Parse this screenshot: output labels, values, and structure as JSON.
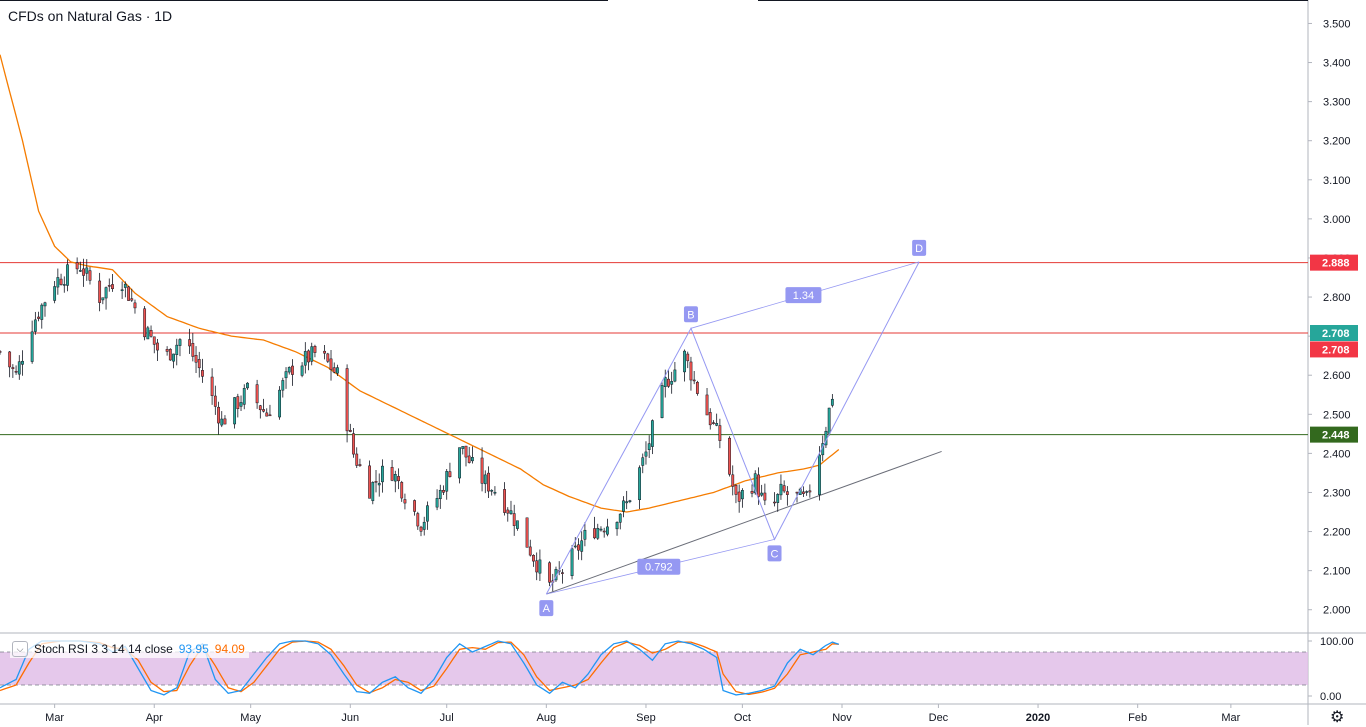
{
  "title": "CFDs on Natural Gas · 1D",
  "indicator": {
    "name": "Stoch RSI 3 3 14 14 close",
    "k_value": "93.95",
    "d_value": "94.09"
  },
  "icons": {
    "collapse": "chevron-down-icon",
    "settings": "gear-icon"
  },
  "colors": {
    "up": "#26a69a",
    "down": "#ef5350",
    "ma": "#f57c00",
    "harmonic": "#9598f2",
    "red_line": "#e53935",
    "green_line": "#33691e",
    "k": "#2196f3",
    "d": "#ff6d00",
    "band": "#e1bee7"
  },
  "chart_data": {
    "type": "candlestick",
    "symbol": "CFDs on Natural Gas",
    "interval": "1D",
    "x_labels": [
      "Mar",
      "Apr",
      "May",
      "Jun",
      "Jul",
      "Aug",
      "Sep",
      "Oct",
      "Nov",
      "Dec",
      "2020",
      "Feb",
      "Mar"
    ],
    "x_label_days": [
      0,
      31,
      61,
      92,
      122,
      153,
      184,
      214,
      245,
      275,
      306,
      337,
      366
    ],
    "x_range_days": [
      -17,
      390
    ],
    "y_ticks": [
      "3.500",
      "3.400",
      "3.300",
      "3.200",
      "3.100",
      "3.000",
      "2.900",
      "2.800",
      "2.700",
      "2.600",
      "2.500",
      "2.400",
      "2.300",
      "2.200",
      "2.100",
      "2.000"
    ],
    "ylim": [
      1.943,
      3.56
    ],
    "price_anchors": [
      [
        -17,
        2.66
      ],
      [
        -12,
        2.6
      ],
      [
        -7,
        2.73
      ],
      [
        0,
        2.84
      ],
      [
        8,
        2.88
      ],
      [
        14,
        2.8
      ],
      [
        20,
        2.86
      ],
      [
        28,
        2.72
      ],
      [
        34,
        2.64
      ],
      [
        40,
        2.7
      ],
      [
        46,
        2.6
      ],
      [
        52,
        2.48
      ],
      [
        60,
        2.56
      ],
      [
        66,
        2.5
      ],
      [
        74,
        2.62
      ],
      [
        82,
        2.66
      ],
      [
        88,
        2.6
      ],
      [
        93,
        2.4
      ],
      [
        98,
        2.31
      ],
      [
        104,
        2.37
      ],
      [
        110,
        2.28
      ],
      [
        114,
        2.22
      ],
      [
        120,
        2.3
      ],
      [
        126,
        2.42
      ],
      [
        132,
        2.34
      ],
      [
        138,
        2.3
      ],
      [
        144,
        2.22
      ],
      [
        150,
        2.12
      ],
      [
        154,
        2.06
      ],
      [
        160,
        2.12
      ],
      [
        166,
        2.2
      ],
      [
        172,
        2.22
      ],
      [
        178,
        2.27
      ],
      [
        184,
        2.4
      ],
      [
        190,
        2.58
      ],
      [
        196,
        2.65
      ],
      [
        202,
        2.52
      ],
      [
        208,
        2.42
      ],
      [
        212,
        2.28
      ],
      [
        218,
        2.33
      ],
      [
        222,
        2.24
      ],
      [
        226,
        2.3
      ],
      [
        234,
        2.28
      ],
      [
        240,
        2.47
      ],
      [
        242,
        2.55
      ],
      [
        244,
        2.71
      ]
    ],
    "ma_line": [
      [
        -17,
        3.42
      ],
      [
        -10,
        3.2
      ],
      [
        -5,
        3.02
      ],
      [
        0,
        2.93
      ],
      [
        5,
        2.89
      ],
      [
        10,
        2.88
      ],
      [
        18,
        2.87
      ],
      [
        25,
        2.81
      ],
      [
        35,
        2.75
      ],
      [
        45,
        2.72
      ],
      [
        55,
        2.7
      ],
      [
        65,
        2.69
      ],
      [
        75,
        2.66
      ],
      [
        85,
        2.62
      ],
      [
        95,
        2.56
      ],
      [
        105,
        2.52
      ],
      [
        115,
        2.48
      ],
      [
        125,
        2.44
      ],
      [
        135,
        2.4
      ],
      [
        145,
        2.36
      ],
      [
        152,
        2.32
      ],
      [
        160,
        2.29
      ],
      [
        170,
        2.26
      ],
      [
        178,
        2.25
      ],
      [
        185,
        2.26
      ],
      [
        195,
        2.28
      ],
      [
        205,
        2.3
      ],
      [
        215,
        2.33
      ],
      [
        225,
        2.35
      ],
      [
        233,
        2.36
      ],
      [
        238,
        2.37
      ],
      [
        244,
        2.41
      ]
    ],
    "pattern": {
      "points": [
        {
          "label": "A",
          "day": 153,
          "price": 2.04
        },
        {
          "label": "B",
          "day": 198,
          "price": 2.72
        },
        {
          "label": "C",
          "day": 224,
          "price": 2.18
        },
        {
          "label": "D",
          "day": 269,
          "price": 2.89
        }
      ],
      "ratios": [
        {
          "label": "0.792",
          "day": 188,
          "price": 2.11
        },
        {
          "label": "1.34",
          "day": 233,
          "price": 2.805
        }
      ]
    },
    "trendline": {
      "from": [
        153,
        2.04
      ],
      "to": [
        276,
        2.405
      ]
    },
    "horizontal_levels": [
      {
        "price": 2.888,
        "label": "2.888",
        "color": "#e53935"
      },
      {
        "price": 2.708,
        "label": "2.708",
        "color": "#e53935"
      },
      {
        "price": 2.448,
        "label": "2.448",
        "color": "#33691e"
      }
    ],
    "price_badges": [
      {
        "price": 2.888,
        "label": "2.888",
        "color": "#f23645"
      },
      {
        "price": 2.708,
        "label": "2.708",
        "color": "#26a69a"
      },
      {
        "price": 2.666,
        "label": "2.708",
        "color": "#f23645"
      },
      {
        "price": 2.448,
        "label": "2.448",
        "color": "#33691e"
      }
    ],
    "stoch_rsi": {
      "y_ticks": [
        "100.00",
        "0.00"
      ],
      "ylim": [
        0,
        100
      ],
      "band": [
        20,
        80
      ],
      "k_anchors": [
        [
          -17,
          15
        ],
        [
          -12,
          30
        ],
        [
          -8,
          85
        ],
        [
          -4,
          100
        ],
        [
          2,
          100
        ],
        [
          8,
          100
        ],
        [
          14,
          95
        ],
        [
          18,
          80
        ],
        [
          22,
          90
        ],
        [
          26,
          50
        ],
        [
          30,
          10
        ],
        [
          34,
          2
        ],
        [
          38,
          15
        ],
        [
          42,
          80
        ],
        [
          46,
          95
        ],
        [
          50,
          30
        ],
        [
          54,
          5
        ],
        [
          58,
          10
        ],
        [
          62,
          40
        ],
        [
          66,
          70
        ],
        [
          70,
          95
        ],
        [
          74,
          100
        ],
        [
          78,
          100
        ],
        [
          82,
          95
        ],
        [
          86,
          75
        ],
        [
          90,
          40
        ],
        [
          94,
          8
        ],
        [
          98,
          5
        ],
        [
          102,
          25
        ],
        [
          106,
          35
        ],
        [
          110,
          15
        ],
        [
          114,
          5
        ],
        [
          118,
          30
        ],
        [
          122,
          70
        ],
        [
          126,
          95
        ],
        [
          130,
          80
        ],
        [
          134,
          90
        ],
        [
          138,
          100
        ],
        [
          142,
          95
        ],
        [
          146,
          60
        ],
        [
          150,
          20
        ],
        [
          154,
          5
        ],
        [
          158,
          25
        ],
        [
          162,
          15
        ],
        [
          166,
          40
        ],
        [
          170,
          75
        ],
        [
          174,
          95
        ],
        [
          178,
          100
        ],
        [
          182,
          85
        ],
        [
          186,
          65
        ],
        [
          190,
          95
        ],
        [
          194,
          100
        ],
        [
          198,
          95
        ],
        [
          202,
          85
        ],
        [
          206,
          70
        ],
        [
          208,
          10
        ],
        [
          212,
          2
        ],
        [
          216,
          5
        ],
        [
          220,
          10
        ],
        [
          224,
          18
        ],
        [
          228,
          60
        ],
        [
          232,
          85
        ],
        [
          236,
          75
        ],
        [
          240,
          92
        ],
        [
          242,
          98
        ],
        [
          244,
          94
        ]
      ],
      "d_anchors": [
        [
          -17,
          10
        ],
        [
          -12,
          20
        ],
        [
          -8,
          60
        ],
        [
          -4,
          95
        ],
        [
          2,
          100
        ],
        [
          8,
          100
        ],
        [
          14,
          97
        ],
        [
          18,
          88
        ],
        [
          22,
          85
        ],
        [
          26,
          65
        ],
        [
          30,
          25
        ],
        [
          34,
          8
        ],
        [
          38,
          10
        ],
        [
          42,
          55
        ],
        [
          46,
          90
        ],
        [
          50,
          55
        ],
        [
          54,
          15
        ],
        [
          58,
          8
        ],
        [
          62,
          25
        ],
        [
          66,
          55
        ],
        [
          70,
          85
        ],
        [
          74,
          98
        ],
        [
          78,
          100
        ],
        [
          82,
          98
        ],
        [
          86,
          85
        ],
        [
          90,
          55
        ],
        [
          94,
          20
        ],
        [
          98,
          6
        ],
        [
          102,
          15
        ],
        [
          106,
          30
        ],
        [
          110,
          25
        ],
        [
          114,
          10
        ],
        [
          118,
          18
        ],
        [
          122,
          50
        ],
        [
          126,
          85
        ],
        [
          130,
          88
        ],
        [
          134,
          85
        ],
        [
          138,
          97
        ],
        [
          142,
          98
        ],
        [
          146,
          75
        ],
        [
          150,
          35
        ],
        [
          154,
          10
        ],
        [
          158,
          15
        ],
        [
          162,
          20
        ],
        [
          166,
          30
        ],
        [
          170,
          60
        ],
        [
          174,
          88
        ],
        [
          178,
          98
        ],
        [
          182,
          92
        ],
        [
          186,
          78
        ],
        [
          190,
          85
        ],
        [
          194,
          98
        ],
        [
          198,
          98
        ],
        [
          202,
          90
        ],
        [
          206,
          80
        ],
        [
          208,
          40
        ],
        [
          212,
          8
        ],
        [
          216,
          3
        ],
        [
          220,
          7
        ],
        [
          224,
          14
        ],
        [
          228,
          40
        ],
        [
          232,
          75
        ],
        [
          236,
          80
        ],
        [
          240,
          85
        ],
        [
          242,
          95
        ],
        [
          244,
          94
        ]
      ]
    }
  }
}
